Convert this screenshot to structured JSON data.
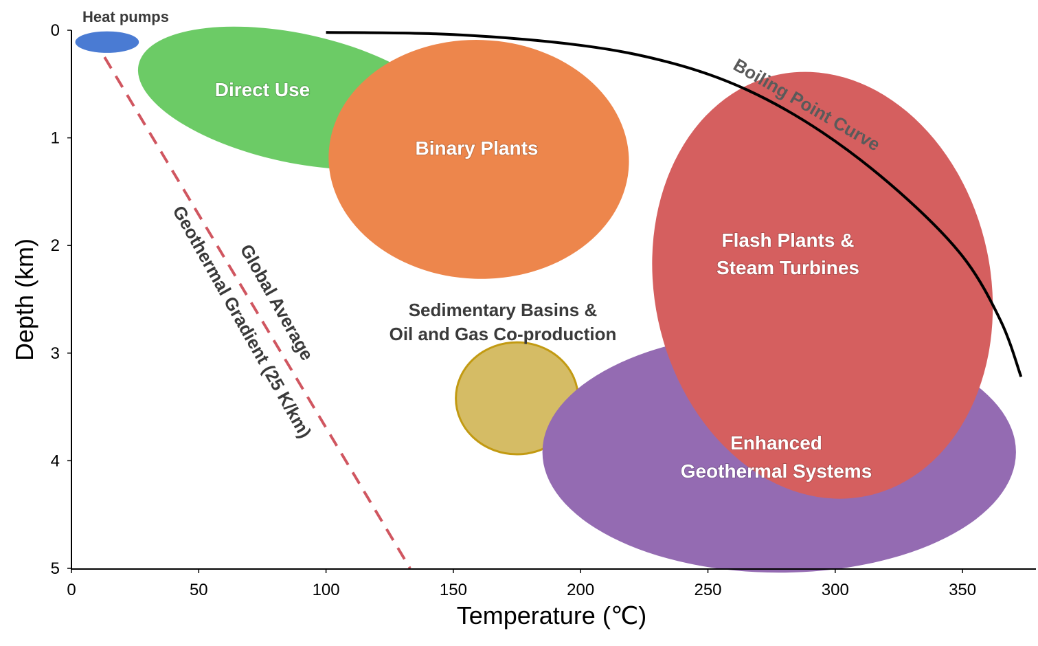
{
  "chart_data": {
    "type": "scatter",
    "title": "",
    "xlabel": "Temperature (℃)",
    "ylabel": "Depth (km)",
    "xlim": [
      0,
      380
    ],
    "ylim": [
      0,
      5
    ],
    "y_inverted": true,
    "x_ticks": [
      "0",
      "50",
      "100",
      "150",
      "200",
      "250",
      "300",
      "350"
    ],
    "y_ticks": [
      "0",
      "1",
      "2",
      "3",
      "4",
      "5"
    ],
    "regions": [
      {
        "name": "Direct Use",
        "label_lines": [
          "Direct Use"
        ],
        "color": "#6ccb66",
        "label_style": "light",
        "cx": 88,
        "cy": 0.63,
        "rx": 63,
        "ry": 0.6,
        "rotation": 12
      },
      {
        "name": "Binary Plants",
        "label_lines": [
          "Binary Plants"
        ],
        "color": "#ed864c",
        "label_style": "light",
        "cx": 160,
        "cy": 1.2,
        "rx": 59,
        "ry": 1.11,
        "rotation": 2
      },
      {
        "name": "Flash Plants & Steam Turbines",
        "label_lines": [
          "Flash Plants &",
          "Steam Turbines"
        ],
        "color": "#d55f5f",
        "label_style": "light",
        "cx": 295,
        "cy": 2.37,
        "rx": 66,
        "ry": 2.0,
        "rotation": -12
      },
      {
        "name": "Sedimentary Basins & Oil and Gas Co-production",
        "label_lines": [
          "Sedimentary Basins &",
          "Oil and Gas Co-production"
        ],
        "color": "#d5bc65",
        "stroke": "#c29a12",
        "label_style": "dark",
        "cx": 175,
        "cy": 3.42,
        "rx": 24,
        "ry": 0.52,
        "rotation": 0
      },
      {
        "name": "Enhanced Geothermal Systems",
        "label_lines": [
          "Enhanced",
          "Geothermal Systems"
        ],
        "color": "#946bb2",
        "label_style": "light",
        "cx": 278,
        "cy": 3.92,
        "rx": 93,
        "ry": 1.12,
        "rotation": 0
      },
      {
        "name": "Heat pumps",
        "label_lines": [
          "Heat pumps"
        ],
        "color": "#4a7bd3",
        "label_style": "small-dark",
        "cx": 14,
        "cy": 0.11,
        "rx": 12.5,
        "ry": 0.1,
        "rotation": 0
      }
    ],
    "lines": [
      {
        "name": "Boiling Point Curve",
        "color": "#000000",
        "style": "solid",
        "points": [
          [
            100,
            0.02
          ],
          [
            150,
            0.04
          ],
          [
            200,
            0.14
          ],
          [
            235,
            0.3
          ],
          [
            265,
            0.55
          ],
          [
            295,
            0.95
          ],
          [
            325,
            1.5
          ],
          [
            350,
            2.1
          ],
          [
            365,
            2.7
          ],
          [
            373,
            3.22
          ]
        ]
      },
      {
        "name": "Global Average Geothermal Gradient (25 K/km)",
        "label_lines": [
          "Global Average",
          "Geothermal Gradient (25 K/km)"
        ],
        "color": "#d05660",
        "style": "dashed",
        "points": [
          [
            13,
            0.25
          ],
          [
            133,
            5.0
          ]
        ]
      }
    ]
  }
}
